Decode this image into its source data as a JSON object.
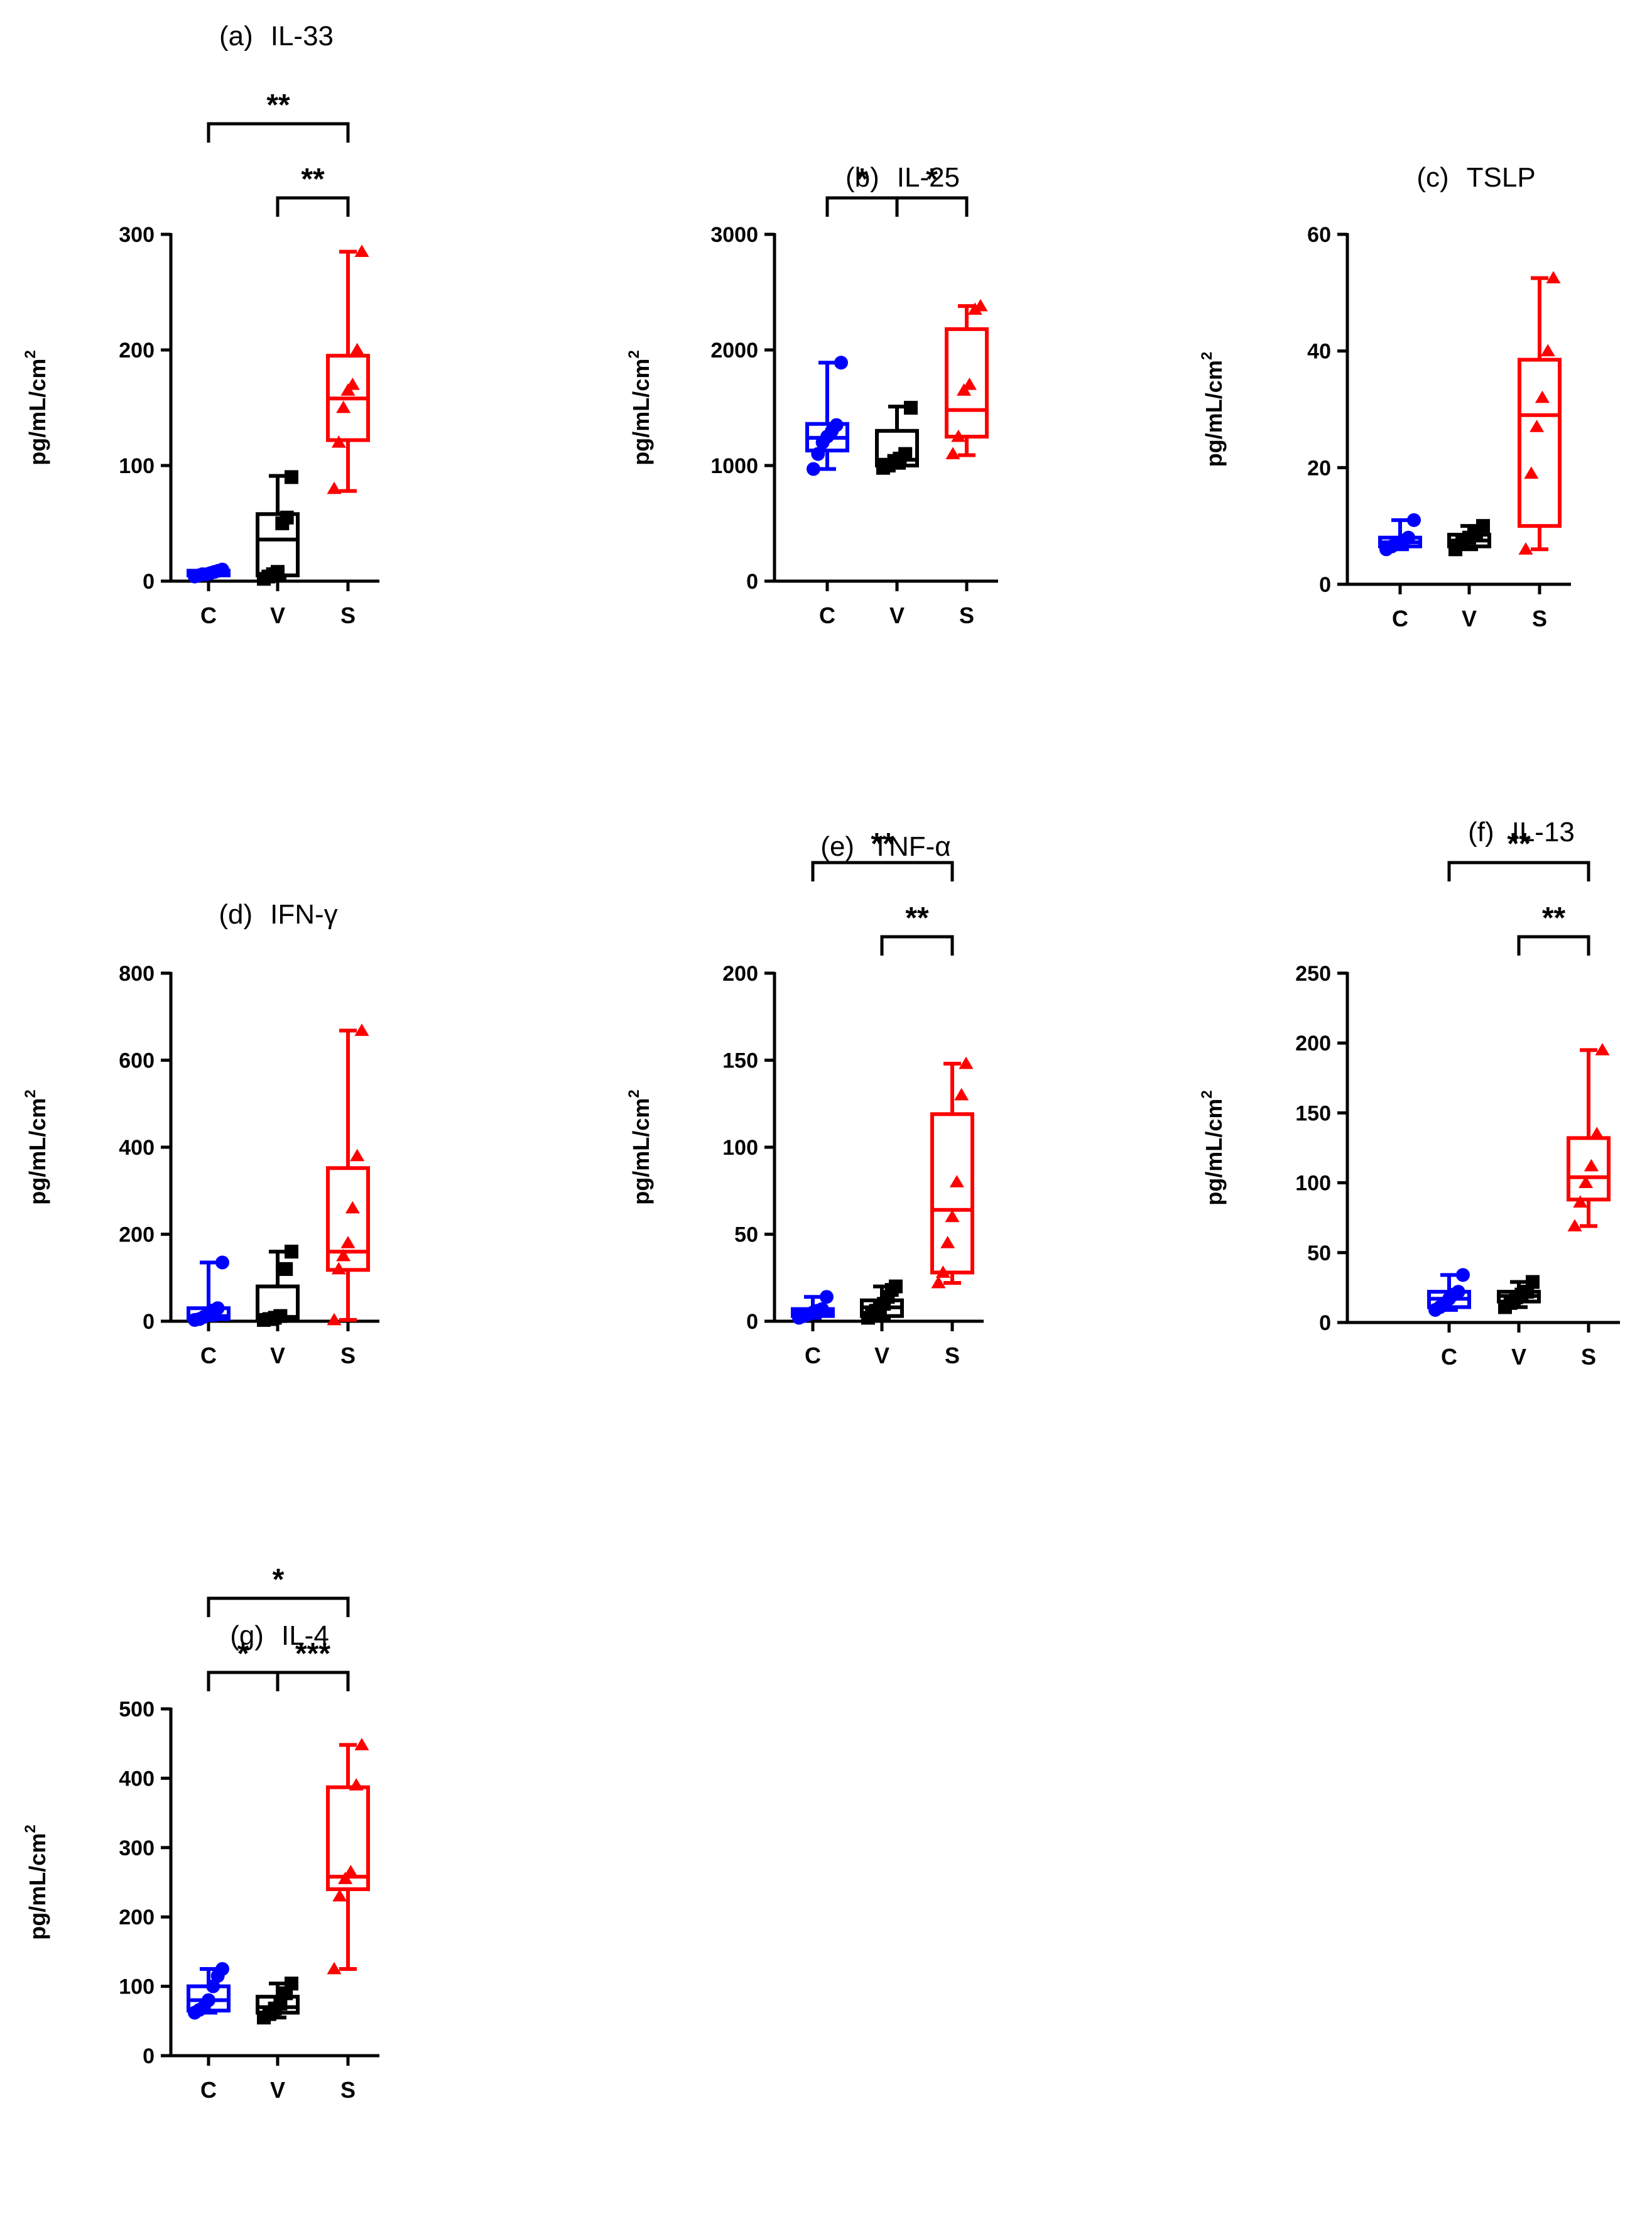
{
  "figure": {
    "colors": {
      "C": "#0000ff",
      "V": "#000000",
      "S": "#ff0000"
    }
  },
  "chart_data": [
    {
      "id": "a",
      "type": "box",
      "title_tag": "(a)",
      "title_name": "IL-33",
      "ylabel_base": "pg/mL/cm",
      "ylabel_sup": "2",
      "ylim": [
        0,
        300
      ],
      "yticks": [
        0,
        100,
        200,
        300
      ],
      "yticklabels": [
        "0",
        "100",
        "200",
        "300"
      ],
      "categories": [
        "C",
        "V",
        "S"
      ],
      "boxes": [
        {
          "group": "C",
          "min": 4,
          "q1": 5,
          "median": 7,
          "q3": 9,
          "max": 10,
          "marker": "circle",
          "points": [
            4,
            5,
            6,
            6,
            7,
            8,
            9,
            10
          ]
        },
        {
          "group": "V",
          "min": 2,
          "q1": 5,
          "median": 36,
          "q3": 58,
          "max": 91,
          "marker": "square",
          "points": [
            2,
            4,
            6,
            8,
            50,
            55,
            90
          ]
        },
        {
          "group": "S",
          "min": 78,
          "q1": 122,
          "median": 158,
          "q3": 195,
          "max": 285,
          "marker": "triangle",
          "points": [
            80,
            120,
            150,
            165,
            170,
            200,
            285
          ]
        }
      ],
      "brackets": [
        {
          "from": 0,
          "to": 2,
          "level": 1,
          "label": "**"
        },
        {
          "from": 1,
          "to": 2,
          "level": 0,
          "label": "**"
        }
      ]
    },
    {
      "id": "b",
      "type": "box",
      "title_tag": "(b)",
      "title_name": "IL-25",
      "ylabel_base": "pg/mL/cm",
      "ylabel_sup": "2",
      "ylim": [
        0,
        3000
      ],
      "yticks": [
        0,
        1000,
        2000,
        3000
      ],
      "yticklabels": [
        "0",
        "1000",
        "2000",
        "3000"
      ],
      "categories": [
        "C",
        "V",
        "S"
      ],
      "boxes": [
        {
          "group": "C",
          "min": 970,
          "q1": 1130,
          "median": 1240,
          "q3": 1360,
          "max": 1890,
          "marker": "circle",
          "points": [
            970,
            1100,
            1200,
            1250,
            1300,
            1350,
            1890
          ]
        },
        {
          "group": "V",
          "min": 980,
          "q1": 1000,
          "median": 1050,
          "q3": 1300,
          "max": 1510,
          "marker": "square",
          "points": [
            980,
            1000,
            1040,
            1060,
            1100,
            1500
          ]
        },
        {
          "group": "S",
          "min": 1090,
          "q1": 1250,
          "median": 1480,
          "q3": 2180,
          "max": 2380,
          "marker": "triangle",
          "points": [
            1100,
            1250,
            1650,
            1700,
            2350,
            2380
          ]
        }
      ],
      "brackets": [
        {
          "from": 0,
          "to": 1,
          "level": 0,
          "label": "*"
        },
        {
          "from": 1,
          "to": 2,
          "level": 0,
          "label": "*"
        }
      ]
    },
    {
      "id": "c",
      "type": "box",
      "title_tag": "(c)",
      "title_name": "TSLP",
      "ylabel_base": "pg/mL/cm",
      "ylabel_sup": "2",
      "ylim": [
        0,
        60
      ],
      "yticks": [
        0,
        20,
        40,
        60
      ],
      "yticklabels": [
        "0",
        "20",
        "40",
        "60"
      ],
      "categories": [
        "C",
        "V",
        "S"
      ],
      "boxes": [
        {
          "group": "C",
          "min": 6,
          "q1": 6.5,
          "median": 7.2,
          "q3": 8,
          "max": 11,
          "marker": "circle",
          "points": [
            6,
            6.5,
            7,
            7.5,
            8,
            11
          ]
        },
        {
          "group": "V",
          "min": 6,
          "q1": 6.5,
          "median": 7.5,
          "q3": 8.5,
          "max": 10,
          "marker": "square",
          "points": [
            6,
            7,
            8,
            9,
            10
          ]
        },
        {
          "group": "S",
          "min": 6,
          "q1": 10,
          "median": 29,
          "q3": 38.5,
          "max": 52.5,
          "marker": "triangle",
          "points": [
            6,
            19,
            27,
            32,
            40,
            52.5
          ]
        }
      ],
      "brackets": []
    },
    {
      "id": "d",
      "type": "box",
      "title_tag": "(d)",
      "title_name": "IFN-γ",
      "ylabel_base": "pg/mL/cm",
      "ylabel_sup": "2",
      "ylim": [
        0,
        800
      ],
      "yticks": [
        0,
        200,
        400,
        600,
        800
      ],
      "yticklabels": [
        "0",
        "200",
        "400",
        "600",
        "800"
      ],
      "categories": [
        "C",
        "V",
        "S"
      ],
      "boxes": [
        {
          "group": "C",
          "min": 3,
          "q1": 5,
          "median": 12,
          "q3": 30,
          "max": 135,
          "marker": "circle",
          "points": [
            3,
            5,
            10,
            15,
            25,
            30,
            135
          ]
        },
        {
          "group": "V",
          "min": 3,
          "q1": 5,
          "median": 10,
          "q3": 80,
          "max": 160,
          "marker": "square",
          "points": [
            3,
            5,
            8,
            12,
            120,
            160
          ]
        },
        {
          "group": "S",
          "min": 3,
          "q1": 118,
          "median": 160,
          "q3": 352,
          "max": 668,
          "marker": "triangle",
          "points": [
            3,
            120,
            150,
            180,
            260,
            380,
            668
          ]
        }
      ],
      "brackets": []
    },
    {
      "id": "e",
      "type": "box",
      "title_tag": "(e)",
      "title_name": "TNF-α",
      "ylabel_base": "pg/mL/cm",
      "ylabel_sup": "2",
      "ylim": [
        0,
        200
      ],
      "yticks": [
        0,
        50,
        100,
        150,
        200
      ],
      "yticklabels": [
        "0",
        "50",
        "100",
        "150",
        "200"
      ],
      "categories": [
        "C",
        "V",
        "S"
      ],
      "boxes": [
        {
          "group": "C",
          "min": 2,
          "q1": 3,
          "median": 5,
          "q3": 7,
          "max": 14,
          "marker": "circle",
          "points": [
            2,
            3,
            4,
            5,
            6,
            7,
            14
          ]
        },
        {
          "group": "V",
          "min": 2,
          "q1": 3,
          "median": 8,
          "q3": 12,
          "max": 20,
          "marker": "square",
          "points": [
            2,
            4,
            6,
            8,
            10,
            14,
            18,
            20
          ]
        },
        {
          "group": "S",
          "min": 22,
          "q1": 28,
          "median": 64,
          "q3": 119,
          "max": 148,
          "marker": "triangle",
          "points": [
            22,
            28,
            45,
            60,
            80,
            130,
            148
          ]
        }
      ],
      "brackets": [
        {
          "from": 0,
          "to": 2,
          "level": 1,
          "label": "**"
        },
        {
          "from": 1,
          "to": 2,
          "level": 0,
          "label": "**"
        }
      ]
    },
    {
      "id": "f",
      "type": "box",
      "title_tag": "(f)",
      "title_name": "IL-13",
      "ylabel_base": "pg/mL/cm",
      "ylabel_sup": "2",
      "ylim": [
        0,
        250
      ],
      "yticks": [
        0,
        50,
        100,
        150,
        200,
        250
      ],
      "yticklabels": [
        "0",
        "50",
        "100",
        "150",
        "200",
        "250"
      ],
      "categories": [
        "C",
        "V",
        "S"
      ],
      "boxes": [
        {
          "group": "C",
          "min": 9,
          "q1": 11,
          "median": 17,
          "q3": 22,
          "max": 34,
          "marker": "circle",
          "points": [
            9,
            11,
            13,
            17,
            20,
            22,
            34
          ]
        },
        {
          "group": "V",
          "min": 11,
          "q1": 15,
          "median": 19,
          "q3": 22,
          "max": 29,
          "marker": "square",
          "points": [
            11,
            14,
            18,
            20,
            22,
            29
          ]
        },
        {
          "group": "S",
          "min": 69,
          "q1": 88,
          "median": 104,
          "q3": 132,
          "max": 195,
          "marker": "triangle",
          "points": [
            69,
            86,
            100,
            112,
            135,
            195
          ]
        }
      ],
      "brackets": [
        {
          "from": 0,
          "to": 2,
          "level": 1,
          "label": "**"
        },
        {
          "from": 1,
          "to": 2,
          "level": 0,
          "label": "**"
        }
      ]
    },
    {
      "id": "g",
      "type": "box",
      "title_tag": "(g)",
      "title_name": "IL-4",
      "ylabel_base": "pg/mL/cm",
      "ylabel_sup": "2",
      "ylim": [
        0,
        500
      ],
      "yticks": [
        0,
        100,
        200,
        300,
        400,
        500
      ],
      "yticklabels": [
        "0",
        "100",
        "200",
        "300",
        "400",
        "500"
      ],
      "categories": [
        "C",
        "V",
        "S"
      ],
      "boxes": [
        {
          "group": "C",
          "min": 62,
          "q1": 65,
          "median": 80,
          "q3": 100,
          "max": 125,
          "marker": "circle",
          "points": [
            62,
            66,
            70,
            80,
            100,
            115,
            125
          ]
        },
        {
          "group": "V",
          "min": 55,
          "q1": 62,
          "median": 70,
          "q3": 85,
          "max": 104,
          "marker": "square",
          "points": [
            55,
            60,
            68,
            75,
            90,
            104
          ]
        },
        {
          "group": "S",
          "min": 125,
          "q1": 240,
          "median": 258,
          "q3": 387,
          "max": 448,
          "marker": "triangle",
          "points": [
            125,
            230,
            255,
            265,
            390,
            448
          ]
        }
      ],
      "brackets": [
        {
          "from": 0,
          "to": 2,
          "level": 1,
          "label": "*"
        },
        {
          "from": 0,
          "to": 1,
          "level": 0,
          "label": "*"
        },
        {
          "from": 1,
          "to": 2,
          "level": 0,
          "label": "***"
        }
      ]
    }
  ]
}
